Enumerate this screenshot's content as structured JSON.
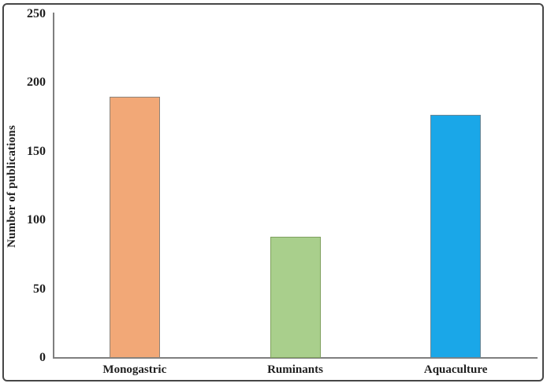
{
  "chart_data": {
    "type": "bar",
    "categories": [
      "Monogastric",
      "Ruminants",
      "Aquaculture"
    ],
    "values": [
      190,
      88,
      177
    ],
    "title": "",
    "xlabel": "",
    "ylabel": "Number of publications",
    "ylim": [
      0,
      250
    ],
    "yticks": [
      0,
      50,
      100,
      150,
      200,
      250
    ],
    "grid": "off",
    "legend": "none",
    "bar_colors": [
      {
        "fill": "#F2A877",
        "border": "#8D8379"
      },
      {
        "fill": "#A9CF8C",
        "border": "#7FA05F"
      },
      {
        "fill": "#1AA7E8",
        "border": "#6B8795"
      }
    ],
    "axis_color": "#7F7F7F",
    "text_color": "#1F1F1F",
    "frame_border_color": "#474747"
  }
}
